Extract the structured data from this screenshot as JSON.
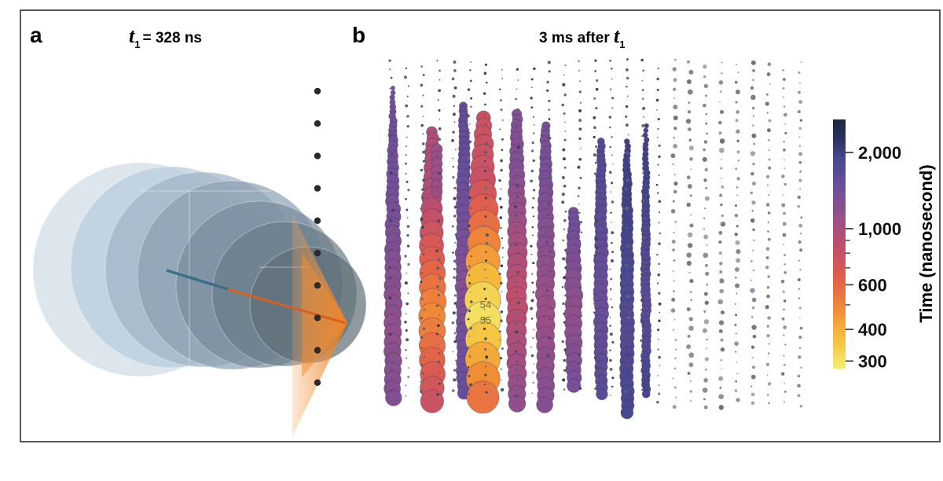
{
  "panel_a": {
    "label": "a",
    "title_var": "t",
    "title_sub": "1",
    "title_rest": "= 328 ns"
  },
  "panel_b": {
    "label": "b",
    "title_pre": "3 ms after ",
    "title_var": "t",
    "title_sub": "1",
    "annotations": [
      "54",
      "55"
    ]
  },
  "colorbar": {
    "title": "Time (nanosecond)",
    "scale": "log",
    "ticks": [
      {
        "value": 300,
        "label": "300"
      },
      {
        "value": 400,
        "label": "400"
      },
      {
        "value": 600,
        "label": "600"
      },
      {
        "value": 1000,
        "label": "1,000"
      },
      {
        "value": 2000,
        "label": "2,000"
      }
    ],
    "minor_ticks": [
      500,
      700,
      800,
      900
    ],
    "range": [
      280,
      2700
    ],
    "colormap": [
      "#f2ee72",
      "#f5bf3d",
      "#f08a37",
      "#e0604a",
      "#c24f6a",
      "#9a4f86",
      "#6f4f9a",
      "#48488f",
      "#28305e",
      "#1b2a3d"
    ]
  },
  "colors": {
    "blue_circles": [
      "#cfdbe6",
      "#b7cadb",
      "#9fb4c6",
      "#8aa0b2",
      "#778c9c",
      "#697c88",
      "#5f6e76"
    ],
    "cone": "#f08c33",
    "arrow": "#d8601e",
    "dots": "#2a2a2a"
  }
}
